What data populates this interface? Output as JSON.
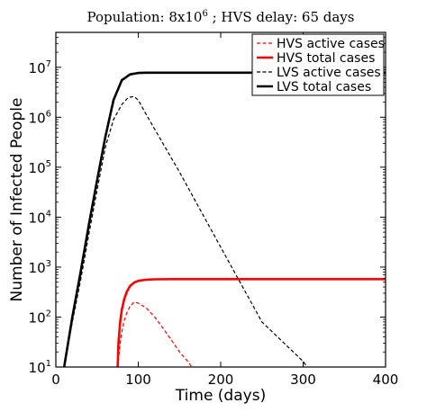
{
  "chart_data": {
    "type": "line",
    "title_main": "Population: 8x10",
    "title_exp": "6",
    "title_rest": " ; HVS delay: 65 days",
    "xlabel": "Time (days)",
    "ylabel": "Number of Infected People",
    "xlim": [
      0,
      400
    ],
    "ylim": [
      10,
      50000000
    ],
    "y_scale": "log",
    "x_ticks": [
      {
        "value": 0,
        "label": "0"
      },
      {
        "value": 100,
        "label": "100"
      },
      {
        "value": 200,
        "label": "200"
      },
      {
        "value": 300,
        "label": "300"
      },
      {
        "value": 400,
        "label": "400"
      }
    ],
    "y_ticks": [
      {
        "value": 10,
        "base": "10",
        "exp": "1"
      },
      {
        "value": 100,
        "base": "10",
        "exp": "2"
      },
      {
        "value": 1000,
        "base": "10",
        "exp": "3"
      },
      {
        "value": 10000,
        "base": "10",
        "exp": "4"
      },
      {
        "value": 100000,
        "base": "10",
        "exp": "5"
      },
      {
        "value": 1000000,
        "base": "10",
        "exp": "6"
      },
      {
        "value": 10000000,
        "base": "10",
        "exp": "7"
      }
    ],
    "grid": false,
    "legend_position": "top-right",
    "series": [
      {
        "name": "HVS active cases",
        "color": "#ff0000",
        "style": "dashed",
        "x": [
          75,
          78,
          80,
          83,
          86,
          90,
          95,
          100,
          110,
          120,
          130,
          140,
          150,
          160,
          165
        ],
        "y": [
          10,
          30,
          50,
          85,
          120,
          165,
          200,
          190,
          150,
          100,
          60,
          35,
          20,
          13,
          10
        ]
      },
      {
        "name": "HVS total cases",
        "color": "#ff0000",
        "style": "solid",
        "x": [
          75,
          76,
          78,
          80,
          83,
          86,
          90,
          95,
          100,
          110,
          120,
          140,
          200,
          300,
          400
        ],
        "y": [
          10,
          30,
          80,
          140,
          230,
          320,
          420,
          490,
          530,
          560,
          570,
          575,
          575,
          575,
          575
        ]
      },
      {
        "name": "LVS active cases",
        "color": "#000000",
        "style": "dashed",
        "x": [
          10,
          20,
          30,
          40,
          50,
          60,
          70,
          80,
          88,
          95,
          100,
          110,
          150,
          200,
          250,
          300,
          305
        ],
        "y": [
          10,
          80,
          550,
          4500,
          35000,
          250000,
          900000,
          1800000,
          2500000,
          2600000,
          2200000,
          1100000,
          80000,
          2500,
          80,
          13,
          10
        ]
      },
      {
        "name": "LVS total cases",
        "color": "#000000",
        "style": "solid",
        "x": [
          10,
          20,
          30,
          40,
          50,
          60,
          70,
          80,
          90,
          100,
          110,
          120,
          150,
          200,
          300,
          400
        ],
        "y": [
          10,
          100,
          800,
          7000,
          55000,
          400000,
          2200000,
          5500000,
          7200000,
          7700000,
          7800000,
          7800000,
          7800000,
          7800000,
          7800000,
          7800000
        ]
      }
    ]
  }
}
